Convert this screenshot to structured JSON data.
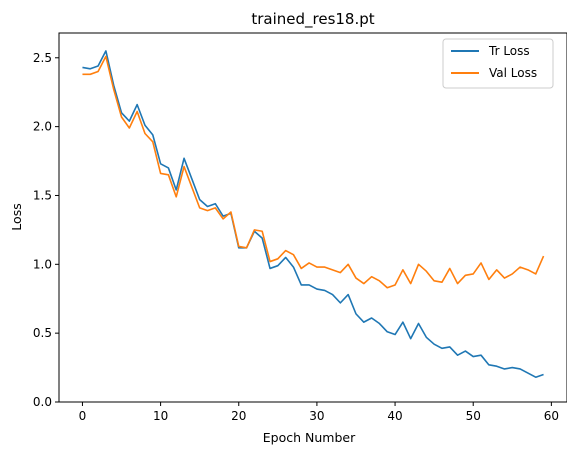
{
  "chart_data": {
    "type": "line",
    "title": "trained_res18.pt",
    "xlabel": "Epoch Number",
    "ylabel": "Loss",
    "xlim": [
      -3,
      62
    ],
    "ylim": [
      0.0,
      2.68
    ],
    "xticks": [
      0,
      10,
      20,
      30,
      40,
      50,
      60
    ],
    "yticks": [
      0.0,
      0.5,
      1.0,
      1.5,
      2.0,
      2.5
    ],
    "ytick_labels": [
      "0.0",
      "0.5",
      "1.0",
      "1.5",
      "2.0",
      "2.5"
    ],
    "grid": false,
    "legend": "top-right",
    "x": [
      0,
      1,
      2,
      3,
      4,
      5,
      6,
      7,
      8,
      9,
      10,
      11,
      12,
      13,
      14,
      15,
      16,
      17,
      18,
      19,
      20,
      21,
      22,
      23,
      24,
      25,
      26,
      27,
      28,
      29,
      30,
      31,
      32,
      33,
      34,
      35,
      36,
      37,
      38,
      39,
      40,
      41,
      42,
      43,
      44,
      45,
      46,
      47,
      48,
      49,
      50,
      51,
      52,
      53,
      54,
      55,
      56,
      57,
      58,
      59
    ],
    "series": [
      {
        "name": "Tr Loss",
        "color": "#1f77b4",
        "values": [
          2.43,
          2.42,
          2.44,
          2.55,
          2.3,
          2.1,
          2.04,
          2.16,
          2.01,
          1.94,
          1.73,
          1.7,
          1.54,
          1.77,
          1.62,
          1.47,
          1.42,
          1.44,
          1.35,
          1.37,
          1.12,
          1.12,
          1.24,
          1.19,
          0.97,
          0.99,
          1.05,
          0.98,
          0.85,
          0.85,
          0.82,
          0.81,
          0.78,
          0.72,
          0.78,
          0.64,
          0.58,
          0.61,
          0.57,
          0.51,
          0.49,
          0.58,
          0.46,
          0.57,
          0.47,
          0.42,
          0.39,
          0.4,
          0.34,
          0.37,
          0.33,
          0.34,
          0.27,
          0.26,
          0.24,
          0.25,
          0.24,
          0.21,
          0.18,
          0.2
        ]
      },
      {
        "name": "Val Loss",
        "color": "#ff7f0e",
        "values": [
          2.38,
          2.38,
          2.4,
          2.51,
          2.27,
          2.07,
          1.99,
          2.11,
          1.95,
          1.89,
          1.66,
          1.65,
          1.49,
          1.71,
          1.56,
          1.41,
          1.39,
          1.41,
          1.33,
          1.38,
          1.13,
          1.12,
          1.25,
          1.24,
          1.02,
          1.04,
          1.1,
          1.07,
          0.97,
          1.01,
          0.98,
          0.98,
          0.96,
          0.94,
          1.0,
          0.9,
          0.86,
          0.91,
          0.88,
          0.83,
          0.85,
          0.96,
          0.86,
          1.0,
          0.95,
          0.88,
          0.87,
          0.97,
          0.86,
          0.92,
          0.93,
          1.01,
          0.89,
          0.96,
          0.9,
          0.93,
          0.98,
          0.96,
          0.93,
          1.06
        ]
      }
    ]
  }
}
